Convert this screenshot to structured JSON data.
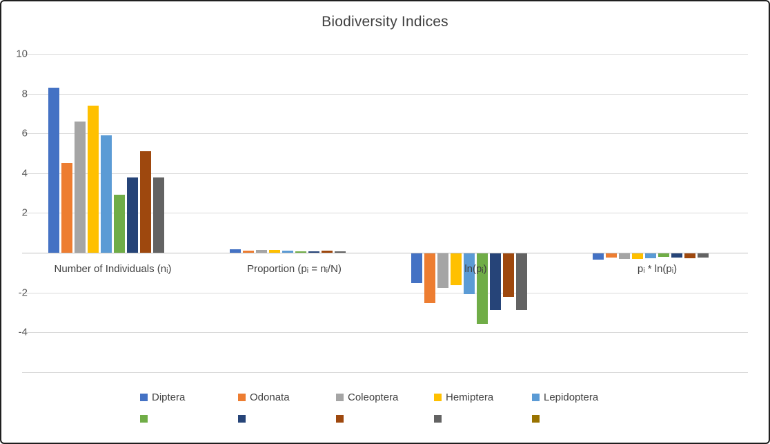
{
  "chart_data": {
    "type": "bar",
    "title": "Biodiversity Indices",
    "categories": [
      "Number of Individuals (nᵢ)",
      "Proportion (pᵢ = nᵢ/N)",
      "ln(pᵢ)",
      "pᵢ * ln(pᵢ)"
    ],
    "series": [
      {
        "name": "Diptera",
        "color": "#4472C4",
        "values": [
          8.3,
          0.17,
          -1.5,
          -0.3
        ]
      },
      {
        "name": "Odonata",
        "color": "#ED7D31",
        "values": [
          4.5,
          0.09,
          -2.5,
          -0.22
        ]
      },
      {
        "name": "Coleoptera",
        "color": "#A5A5A5",
        "values": [
          6.6,
          0.14,
          -1.75,
          -0.27
        ]
      },
      {
        "name": "Hemiptera",
        "color": "#FFC000",
        "values": [
          7.4,
          0.15,
          -1.6,
          -0.29
        ]
      },
      {
        "name": "Lepidoptera",
        "color": "#5B9BD5",
        "values": [
          5.9,
          0.12,
          -2.05,
          -0.26
        ]
      },
      {
        "name": "",
        "color": "#70AD47",
        "values": [
          2.9,
          0.06,
          -3.55,
          -0.17
        ]
      },
      {
        "name": "",
        "color": "#264478",
        "values": [
          3.8,
          0.08,
          -2.85,
          -0.2
        ]
      },
      {
        "name": "",
        "color": "#9E480E",
        "values": [
          5.1,
          0.11,
          -2.2,
          -0.23
        ]
      },
      {
        "name": "",
        "color": "#636363",
        "values": [
          3.8,
          0.08,
          -2.85,
          -0.2
        ]
      },
      {
        "name": "",
        "color": "#997300",
        "values": [
          0,
          0,
          0,
          0
        ]
      }
    ],
    "yticks_labeled": [
      10,
      8,
      6,
      4,
      2,
      -2,
      -4
    ],
    "gridlines": [
      10,
      8,
      6,
      4,
      2,
      0,
      -2,
      -4,
      -6
    ],
    "ylim": [
      -6,
      10
    ],
    "grid": true,
    "legend_position": "bottom",
    "colors": {
      "gridline": "#d9d9d9",
      "axis_line": "#bfbfbf",
      "title_text": "#404040",
      "tick_text": "#595959"
    }
  }
}
